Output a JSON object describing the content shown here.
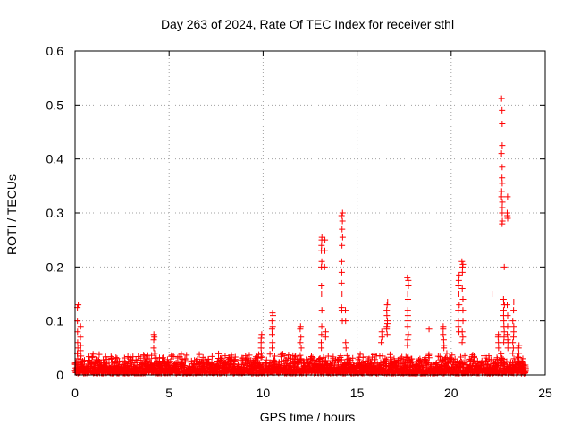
{
  "chart_data": {
    "type": "scatter",
    "title": "Day 263 of 2024, Rate Of TEC Index for receiver sthl",
    "xlabel": "GPS time / hours",
    "ylabel": "ROTI / TECUs",
    "xlim": [
      0,
      25
    ],
    "ylim": [
      0,
      0.6
    ],
    "x_ticks": [
      0,
      5,
      10,
      15,
      20,
      25
    ],
    "x_tick_labels": [
      "0",
      "5",
      "10",
      "15",
      "20",
      "25"
    ],
    "y_ticks": [
      0,
      0.1,
      0.2,
      0.3,
      0.4,
      0.5,
      0.6
    ],
    "y_tick_labels": [
      "0",
      "0.1",
      "0.2",
      "0.3",
      "0.4",
      "0.5",
      "0.6"
    ],
    "grid": true,
    "legend": "none",
    "marker": "+",
    "marker_color": "#ff0000",
    "baseline": {
      "x_range": [
        0,
        24
      ],
      "y_range": [
        0.003,
        0.035
      ]
    },
    "spikes": [
      {
        "x": 0.15,
        "y_values": [
          0.13,
          0.125,
          0.1,
          0.08,
          0.06,
          0.05,
          0.04,
          0.03
        ]
      },
      {
        "x": 0.3,
        "y_values": [
          0.09,
          0.07,
          0.055,
          0.045,
          0.035
        ]
      },
      {
        "x": 4.2,
        "y_values": [
          0.075,
          0.07,
          0.065,
          0.05,
          0.04
        ]
      },
      {
        "x": 9.9,
        "y_values": [
          0.075,
          0.068,
          0.06,
          0.05,
          0.04
        ]
      },
      {
        "x": 10.5,
        "y_values": [
          0.115,
          0.11,
          0.1,
          0.09,
          0.085,
          0.075,
          0.06,
          0.05
        ]
      },
      {
        "x": 12.0,
        "y_values": [
          0.09,
          0.085,
          0.07,
          0.06,
          0.05
        ]
      },
      {
        "x": 13.1,
        "y_values": [
          0.255,
          0.25,
          0.24,
          0.23,
          0.21,
          0.2,
          0.165,
          0.15,
          0.12,
          0.09,
          0.075,
          0.06,
          0.05
        ]
      },
      {
        "x": 13.3,
        "y_values": [
          0.25,
          0.23,
          0.2,
          0.08,
          0.07
        ]
      },
      {
        "x": 14.2,
        "y_values": [
          0.3,
          0.295,
          0.285,
          0.27,
          0.255,
          0.24,
          0.21,
          0.19,
          0.17,
          0.15,
          0.125,
          0.12,
          0.1
        ]
      },
      {
        "x": 14.4,
        "y_values": [
          0.12,
          0.1,
          0.06,
          0.05
        ]
      },
      {
        "x": 16.3,
        "y_values": [
          0.08,
          0.07,
          0.06
        ]
      },
      {
        "x": 16.6,
        "y_values": [
          0.135,
          0.13,
          0.12,
          0.11,
          0.1,
          0.095,
          0.09,
          0.085,
          0.075
        ]
      },
      {
        "x": 17.7,
        "y_values": [
          0.18,
          0.175,
          0.165,
          0.15,
          0.14,
          0.12,
          0.11,
          0.1,
          0.09,
          0.075,
          0.065,
          0.055
        ]
      },
      {
        "x": 18.8,
        "y_values": [
          0.085
        ]
      },
      {
        "x": 19.6,
        "y_values": [
          0.09,
          0.085,
          0.075,
          0.065,
          0.055,
          0.05
        ]
      },
      {
        "x": 20.4,
        "y_values": [
          0.185,
          0.175,
          0.165,
          0.15,
          0.13,
          0.12,
          0.1,
          0.09,
          0.08
        ]
      },
      {
        "x": 20.6,
        "y_values": [
          0.21,
          0.205,
          0.2,
          0.19,
          0.16,
          0.14,
          0.12,
          0.1,
          0.08,
          0.07,
          0.06
        ]
      },
      {
        "x": 22.2,
        "y_values": [
          0.15
        ]
      },
      {
        "x": 22.5,
        "y_values": [
          0.075,
          0.07,
          0.06,
          0.05
        ]
      },
      {
        "x": 22.7,
        "y_values": [
          0.512,
          0.49,
          0.465,
          0.425,
          0.41,
          0.385,
          0.365,
          0.355,
          0.34,
          0.33,
          0.32,
          0.31,
          0.3,
          0.285,
          0.28
        ]
      },
      {
        "x": 22.8,
        "y_values": [
          0.2,
          0.14,
          0.135,
          0.13,
          0.12,
          0.11,
          0.1,
          0.09,
          0.08,
          0.07,
          0.06
        ]
      },
      {
        "x": 23.0,
        "y_values": [
          0.33,
          0.3,
          0.295,
          0.29,
          0.13,
          0.11,
          0.09,
          0.075,
          0.065,
          0.06,
          0.05
        ]
      },
      {
        "x": 23.3,
        "y_values": [
          0.135,
          0.12,
          0.1,
          0.09,
          0.08,
          0.07,
          0.06,
          0.05,
          0.04
        ]
      },
      {
        "x": 23.6,
        "y_values": [
          0.055,
          0.05,
          0.04
        ]
      }
    ]
  }
}
